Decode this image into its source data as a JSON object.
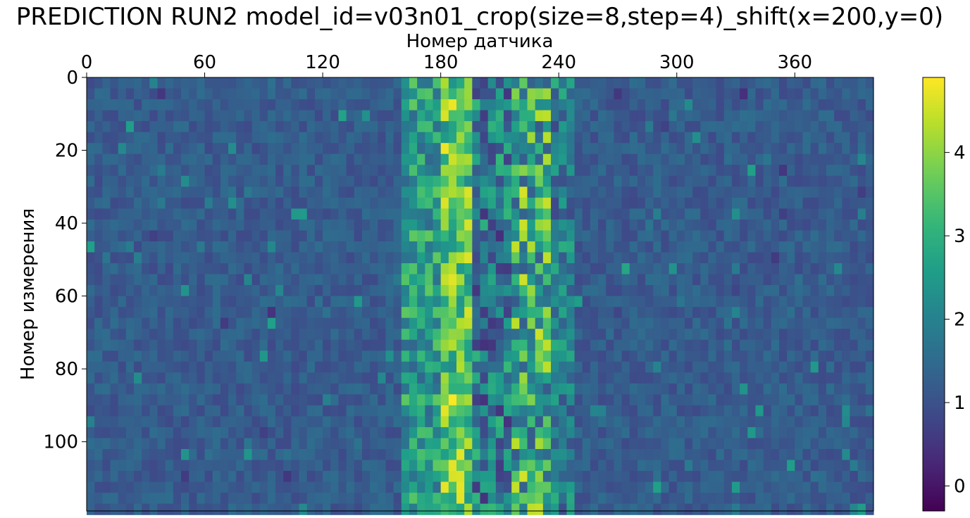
{
  "chart_data": {
    "type": "heatmap",
    "title": "PREDICTION RUN2 model_id=v03n01_crop(size=8,step=4)_shift(x=200,y=0)",
    "xlabel": "Номер датчика",
    "ylabel": "Номер измерения",
    "xlim": [
      0,
      400
    ],
    "ylim": [
      119,
      0
    ],
    "xaxis_position": "top",
    "x_ticks": [
      0,
      60,
      120,
      180,
      240,
      300,
      360
    ],
    "y_ticks": [
      0,
      20,
      40,
      60,
      80,
      100
    ],
    "cell_size": {
      "x": 4,
      "y": 3
    },
    "grid_shape": {
      "rows": 40,
      "cols": 100
    },
    "colormap": "viridis",
    "color_range": [
      -0.3,
      4.9
    ],
    "colorbar_ticks": [
      0,
      1,
      2,
      3,
      4
    ],
    "background_value": 1.2,
    "bands": [
      {
        "x_range": [
          160,
          180
        ],
        "value_low": 1.4,
        "value_high": 3.6
      },
      {
        "x_range": [
          180,
          195
        ],
        "value_low": 2.2,
        "value_high": 4.9
      },
      {
        "x_range": [
          195,
          215
        ],
        "value_low": 0.4,
        "value_high": 3.2
      },
      {
        "x_range": [
          215,
          235
        ],
        "value_low": 1.2,
        "value_high": 4.6
      },
      {
        "x_range": [
          235,
          250
        ],
        "value_low": 0.8,
        "value_high": 3.0
      }
    ]
  }
}
